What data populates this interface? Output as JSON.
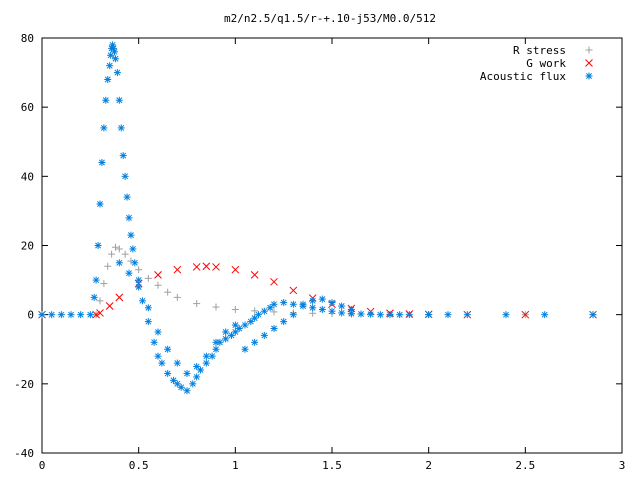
{
  "chart_data": {
    "type": "scatter",
    "title": "m2/n2.5/q1.5/r-+.10-j53/M0.0/512",
    "xlabel": "",
    "ylabel": "",
    "xlim": [
      0,
      3
    ],
    "ylim": [
      -40,
      80
    ],
    "x_ticks": [
      "0",
      "0.5",
      "1",
      "1.5",
      "2",
      "2.5",
      "3"
    ],
    "y_ticks": [
      "80",
      "60",
      "40",
      "20",
      "0",
      "-20",
      "-40"
    ],
    "legend_position": "top-right",
    "grid": false,
    "series": [
      {
        "name": "R stress",
        "marker": "+",
        "color": "#a0a0a0",
        "x": [
          0.0,
          0.28,
          0.3,
          0.32,
          0.34,
          0.36,
          0.38,
          0.4,
          0.43,
          0.46,
          0.5,
          0.55,
          0.6,
          0.65,
          0.7,
          0.8,
          0.9,
          1.0,
          1.1,
          1.2,
          1.3,
          1.4,
          1.5,
          1.6,
          1.8,
          2.0,
          2.5,
          2.85
        ],
        "y": [
          0,
          0,
          4,
          9,
          14,
          17.5,
          19.5,
          19,
          17.5,
          15.5,
          13,
          10.5,
          8.5,
          6.5,
          5,
          3.2,
          2.2,
          1.5,
          1.1,
          0.8,
          0.5,
          0.4,
          0.3,
          0.2,
          0.1,
          0.05,
          0,
          0
        ]
      },
      {
        "name": "G work",
        "marker": "x",
        "color": "#ff0000",
        "x": [
          0.0,
          0.28,
          0.3,
          0.35,
          0.4,
          0.5,
          0.6,
          0.7,
          0.8,
          0.85,
          0.9,
          1.0,
          1.1,
          1.2,
          1.3,
          1.4,
          1.5,
          1.6,
          1.7,
          1.8,
          1.9,
          2.0,
          2.2,
          2.5,
          2.85
        ],
        "y": [
          0,
          0,
          0.5,
          2.5,
          5,
          9,
          11.5,
          13,
          13.8,
          14,
          13.8,
          13,
          11.5,
          9.5,
          7,
          4.8,
          3,
          1.8,
          0.9,
          0.4,
          0.2,
          0.1,
          0,
          0,
          0
        ]
      },
      {
        "name": "Acoustic flux",
        "marker": "*",
        "color": "#0080e0",
        "x": [
          0.0,
          0.05,
          0.1,
          0.15,
          0.2,
          0.25,
          0.27,
          0.28,
          0.29,
          0.3,
          0.31,
          0.32,
          0.33,
          0.34,
          0.35,
          0.355,
          0.36,
          0.365,
          0.37,
          0.375,
          0.38,
          0.39,
          0.4,
          0.41,
          0.42,
          0.43,
          0.44,
          0.45,
          0.46,
          0.47,
          0.48,
          0.5,
          0.52,
          0.55,
          0.58,
          0.6,
          0.62,
          0.65,
          0.68,
          0.7,
          0.72,
          0.75,
          0.78,
          0.8,
          0.82,
          0.85,
          0.88,
          0.9,
          0.92,
          0.95,
          0.98,
          1.0,
          1.02,
          1.05,
          1.08,
          1.1,
          1.12,
          1.15,
          1.18,
          1.2,
          1.25,
          1.3,
          1.35,
          1.4,
          1.45,
          1.5,
          1.55,
          1.6,
          1.65,
          1.7,
          1.75,
          1.8,
          1.85,
          1.9,
          2.0,
          2.1,
          2.2,
          2.4,
          2.6,
          2.85,
          0.4,
          0.45,
          0.5,
          0.55,
          0.6,
          0.65,
          0.7,
          0.75,
          0.8,
          0.85,
          0.9,
          0.95,
          1.0,
          1.05,
          1.1,
          1.15,
          1.2,
          1.25,
          1.3,
          1.35,
          1.4,
          1.45,
          1.5,
          1.55,
          1.6
        ],
        "y": [
          0,
          0,
          0,
          0,
          0,
          0,
          5,
          10,
          20,
          32,
          44,
          54,
          62,
          68,
          72,
          75,
          77,
          78,
          77,
          76,
          74,
          70,
          62,
          54,
          46,
          40,
          34,
          28,
          23,
          19,
          15,
          10,
          4,
          -2,
          -8,
          -12,
          -14,
          -17,
          -19,
          -20,
          -21,
          -22,
          -20,
          -18,
          -16,
          -14,
          -12,
          -10,
          -8,
          -7,
          -6,
          -5,
          -4,
          -3,
          -2,
          -1,
          0,
          1,
          2,
          3,
          3.5,
          3,
          2.5,
          2,
          1.5,
          1,
          0.5,
          0.3,
          0.2,
          0.1,
          0,
          0,
          0,
          0,
          0,
          0,
          0,
          0,
          0,
          0,
          15,
          12,
          8,
          2,
          -5,
          -10,
          -14,
          -17,
          -15,
          -12,
          -8,
          -5,
          -3,
          -10,
          -8,
          -6,
          -4,
          -2,
          0,
          3,
          4,
          4.5,
          3.5,
          2.5,
          1.5
        ]
      }
    ]
  }
}
